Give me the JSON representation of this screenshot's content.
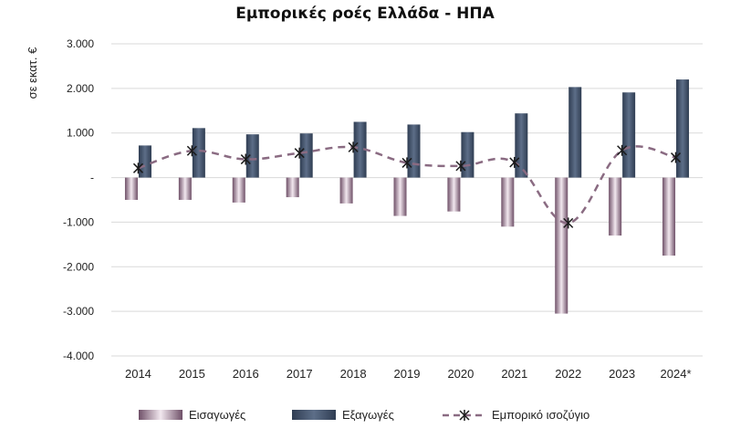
{
  "chart_data": {
    "type": "bar",
    "title": "Εμπορικές ροές Ελλάδα - ΗΠΑ",
    "ylabel": "σε εκατ. €",
    "categories": [
      "2014",
      "2015",
      "2016",
      "2017",
      "2018",
      "2019",
      "2020",
      "2021",
      "2022",
      "2023",
      "2024*"
    ],
    "y_ticks": [
      "3.000",
      "2.000",
      "1.000",
      "-",
      "-1.000",
      "-2.000",
      "-3.000",
      "-4.000"
    ],
    "ylim": [
      -4000,
      3000
    ],
    "grid": true,
    "legend_position": "bottom",
    "series": [
      {
        "name": "Εισαγωγές",
        "kind": "bar",
        "color": "#8a6b82",
        "values": [
          -500,
          -500,
          -560,
          -440,
          -580,
          -860,
          -760,
          -1100,
          -3050,
          -1300,
          -1750
        ]
      },
      {
        "name": "Εξαγωγές",
        "kind": "bar",
        "color": "#44546a",
        "values": [
          720,
          1110,
          970,
          990,
          1250,
          1190,
          1020,
          1440,
          2030,
          1910,
          2200
        ]
      },
      {
        "name": "Εμπορικό ισοζύγιο",
        "kind": "line",
        "color": "#8a6b82",
        "values": [
          210,
          600,
          410,
          550,
          680,
          330,
          260,
          340,
          -1020,
          610,
          450
        ]
      }
    ]
  }
}
